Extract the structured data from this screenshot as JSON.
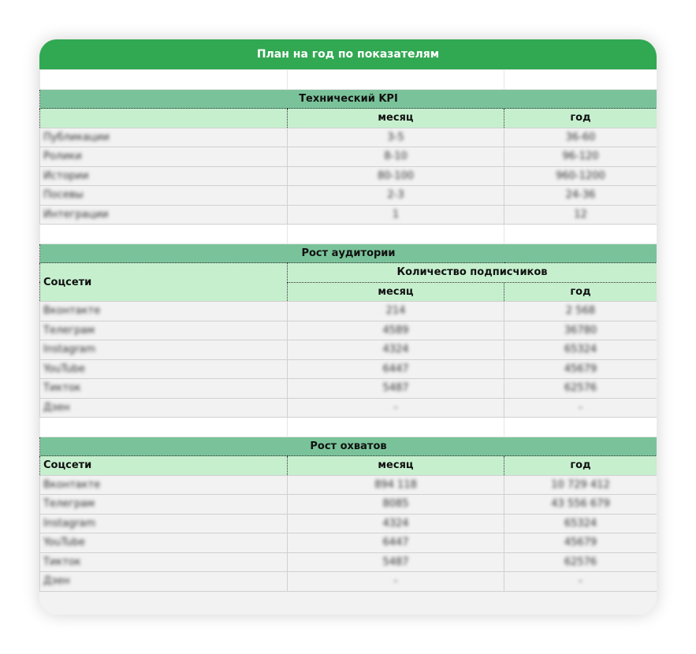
{
  "title": "План на год по показателям",
  "colors": {
    "header": "#31a852",
    "section": "#7ac39a",
    "subheader": "#c6efce"
  },
  "kpi": {
    "section": "Технический KPI",
    "col_month": "месяц",
    "col_year": "год",
    "rows": [
      {
        "name": "Публикации",
        "month": "3-5",
        "year": "36-60"
      },
      {
        "name": "Ролики",
        "month": "8-10",
        "year": "96-120"
      },
      {
        "name": "Истории",
        "month": "80-100",
        "year": "960-1200"
      },
      {
        "name": "Посевы",
        "month": "2-3",
        "year": "24-36"
      },
      {
        "name": "Интеграции",
        "month": "1",
        "year": "12"
      }
    ]
  },
  "audience": {
    "section": "Рост аудитории",
    "col_social": "Соцсети",
    "col_subs": "Количество подписчиков",
    "col_month": "месяц",
    "col_year": "год",
    "rows": [
      {
        "name": "Вконтакте",
        "month": "214",
        "year": "2 568"
      },
      {
        "name": "Телеграм",
        "month": "4589",
        "year": "36780"
      },
      {
        "name": "Instagram",
        "month": "4324",
        "year": "65324"
      },
      {
        "name": "YouTube",
        "month": "6447",
        "year": "45679"
      },
      {
        "name": "Тикток",
        "month": "5487",
        "year": "62576"
      },
      {
        "name": "Дзен",
        "month": "-",
        "year": "-"
      }
    ]
  },
  "reach": {
    "section": "Рост охватов",
    "col_social": "Соцсети",
    "col_month": "месяц",
    "col_year": "год",
    "rows": [
      {
        "name": "Вконтакте",
        "month": "894 118",
        "year": "10 729 412"
      },
      {
        "name": "Телеграм",
        "month": "8085",
        "year": "43 556 679"
      },
      {
        "name": "Instagram",
        "month": "4324",
        "year": "65324"
      },
      {
        "name": "YouTube",
        "month": "6447",
        "year": "45679"
      },
      {
        "name": "Тикток",
        "month": "5487",
        "year": "62576"
      },
      {
        "name": "Дзен",
        "month": "-",
        "year": "-"
      }
    ]
  }
}
